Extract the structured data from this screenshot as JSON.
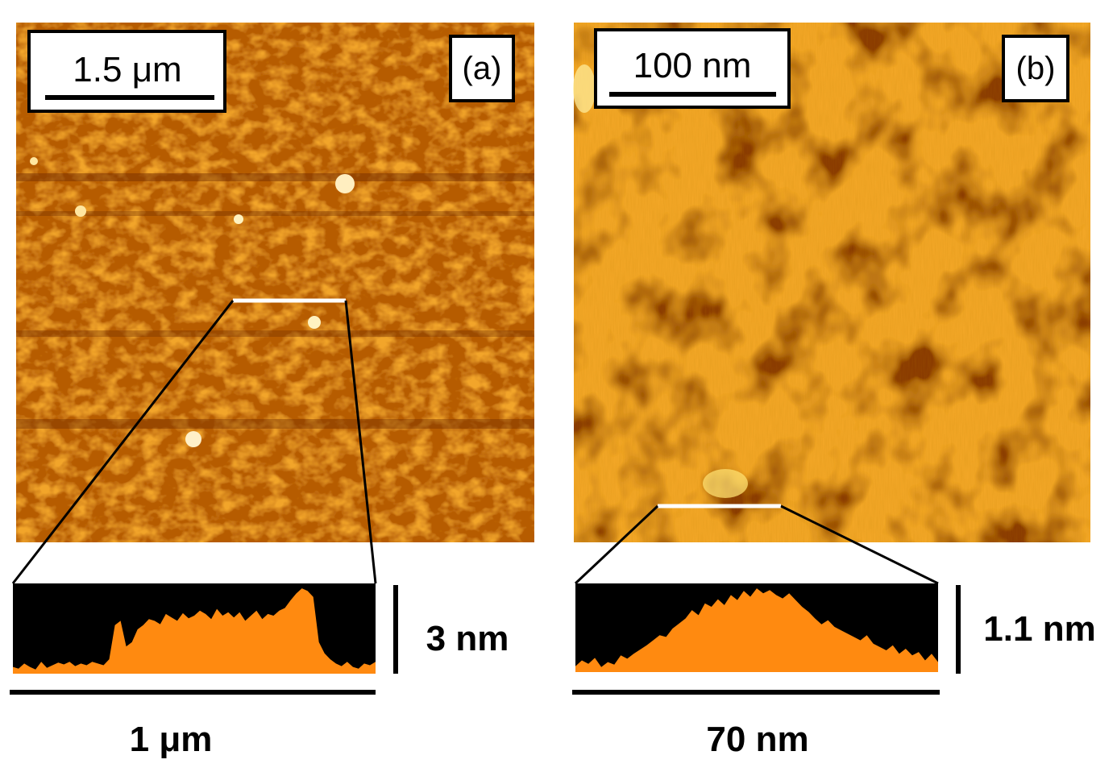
{
  "colors": {
    "afm_base": "#c46a00",
    "afm_light": "#ffc040",
    "afm_dark": "#7a3000",
    "afm_highlight": "#fff2c0",
    "profile_fill": "#ff8a10",
    "profile_background": "#000000",
    "line_marker": "#ffffff",
    "annotation": "#000000"
  },
  "panel_a": {
    "scale_bar_label": "1.5 μm",
    "panel_label": "(a)",
    "profile_height_label": "3 nm",
    "profile_length_label": "1 μm",
    "profile_heights": [
      0.06,
      0.04,
      0.1,
      0.06,
      0.03,
      0.12,
      0.05,
      0.08,
      0.11,
      0.09,
      0.12,
      0.07,
      0.1,
      0.08,
      0.12,
      0.1,
      0.08,
      0.15,
      0.55,
      0.6,
      0.3,
      0.35,
      0.5,
      0.55,
      0.62,
      0.6,
      0.56,
      0.68,
      0.64,
      0.6,
      0.69,
      0.63,
      0.66,
      0.72,
      0.68,
      0.62,
      0.74,
      0.66,
      0.7,
      0.64,
      0.7,
      0.6,
      0.66,
      0.72,
      0.62,
      0.68,
      0.66,
      0.72,
      0.75,
      0.84,
      0.92,
      0.98,
      0.95,
      0.88,
      0.35,
      0.22,
      0.15,
      0.1,
      0.07,
      0.12,
      0.06,
      0.04,
      0.1,
      0.08,
      0.12
    ]
  },
  "panel_b": {
    "scale_bar_label": "100 nm",
    "panel_label": "(b)",
    "profile_height_label": "1.1 nm",
    "profile_length_label": "70 nm",
    "profile_heights": [
      0.05,
      0.12,
      0.08,
      0.15,
      0.04,
      0.1,
      0.07,
      0.18,
      0.14,
      0.2,
      0.25,
      0.3,
      0.36,
      0.42,
      0.4,
      0.5,
      0.56,
      0.62,
      0.72,
      0.66,
      0.8,
      0.76,
      0.85,
      0.78,
      0.9,
      0.84,
      0.95,
      0.88,
      0.98,
      0.92,
      0.96,
      0.9,
      0.86,
      0.92,
      0.84,
      0.76,
      0.7,
      0.62,
      0.55,
      0.6,
      0.52,
      0.48,
      0.44,
      0.4,
      0.36,
      0.42,
      0.32,
      0.28,
      0.24,
      0.3,
      0.2,
      0.26,
      0.18,
      0.22,
      0.12,
      0.2,
      0.1
    ]
  }
}
